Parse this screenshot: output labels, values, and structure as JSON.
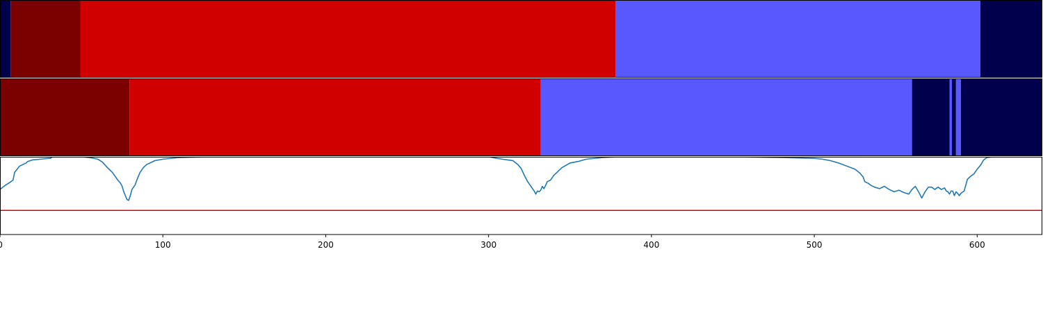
{
  "chart_data": {
    "type": "segmentation-timeline",
    "x_axis": {
      "lim": [
        0,
        640
      ],
      "ticks": [
        0,
        100,
        200,
        300,
        400,
        500,
        600
      ],
      "tick_labels": [
        "0",
        "100",
        "200",
        "300",
        "400",
        "500",
        "600"
      ]
    },
    "palette": {
      "class_0": "#7b0000",
      "class_1": "#d00000",
      "class_2": "#5858ff",
      "class_3": "#00004c"
    },
    "segment_rows": [
      {
        "segments": [
          {
            "start": 0,
            "end": 6.5,
            "class": "class_3"
          },
          {
            "start": 6.5,
            "end": 49.5,
            "class": "class_0"
          },
          {
            "start": 49.5,
            "end": 378,
            "class": "class_1"
          },
          {
            "start": 378,
            "end": 602,
            "class": "class_2"
          },
          {
            "start": 602,
            "end": 640,
            "class": "class_3"
          }
        ]
      },
      {
        "segments": [
          {
            "start": 0,
            "end": 79.5,
            "class": "class_0"
          },
          {
            "start": 79.5,
            "end": 332,
            "class": "class_1"
          },
          {
            "start": 332,
            "end": 560,
            "class": "class_2"
          },
          {
            "start": 560,
            "end": 583,
            "class": "class_3"
          },
          {
            "start": 583,
            "end": 584.5,
            "class": "class_2"
          },
          {
            "start": 584.5,
            "end": 587,
            "class": "class_3"
          },
          {
            "start": 587,
            "end": 590,
            "class": "class_2"
          },
          {
            "start": 590,
            "end": 640,
            "class": "class_3"
          }
        ]
      }
    ],
    "confidence_plot": {
      "ylim": [
        0,
        1
      ],
      "threshold": 0.31,
      "line_color": "#1f77b4",
      "threshold_color": "#e00000",
      "x": [
        0,
        3,
        6,
        8,
        9,
        12,
        16,
        17,
        20,
        25,
        30,
        31,
        32,
        40,
        50,
        55,
        60,
        63,
        66,
        69,
        72,
        74,
        75,
        76,
        77,
        78,
        79,
        80,
        81,
        82,
        83,
        84,
        86,
        88,
        90,
        95,
        100,
        110,
        130,
        200,
        300,
        305,
        315,
        318,
        320,
        322,
        324,
        326,
        328,
        329,
        330,
        331,
        332,
        333,
        334,
        335,
        336,
        338,
        340,
        342,
        345,
        350,
        355,
        360,
        370,
        380,
        450,
        480,
        500,
        505,
        510,
        515,
        520,
        525,
        528,
        530,
        531,
        533,
        535,
        537,
        540,
        543,
        546,
        549,
        552,
        555,
        558,
        560,
        562,
        564,
        566,
        568,
        570,
        572,
        574,
        576,
        578,
        580,
        581,
        582,
        583,
        584,
        585,
        586,
        587,
        588,
        589,
        590,
        592,
        594,
        596,
        598,
        600,
        602,
        604,
        606,
        610,
        620,
        640
      ],
      "y": [
        0.58,
        0.63,
        0.67,
        0.7,
        0.8,
        0.88,
        0.92,
        0.94,
        0.96,
        0.97,
        0.98,
        0.98,
        1.0,
        1.0,
        1.0,
        0.99,
        0.97,
        0.93,
        0.86,
        0.8,
        0.71,
        0.66,
        0.62,
        0.55,
        0.5,
        0.45,
        0.44,
        0.5,
        0.58,
        0.61,
        0.64,
        0.7,
        0.8,
        0.86,
        0.9,
        0.95,
        0.97,
        0.99,
        1.0,
        1.0,
        1.0,
        0.98,
        0.95,
        0.9,
        0.85,
        0.76,
        0.68,
        0.62,
        0.56,
        0.52,
        0.56,
        0.55,
        0.57,
        0.62,
        0.59,
        0.63,
        0.68,
        0.7,
        0.76,
        0.8,
        0.86,
        0.92,
        0.94,
        0.97,
        0.99,
        1.0,
        1.0,
        0.99,
        0.98,
        0.97,
        0.95,
        0.92,
        0.88,
        0.84,
        0.79,
        0.74,
        0.68,
        0.66,
        0.63,
        0.61,
        0.59,
        0.62,
        0.58,
        0.55,
        0.57,
        0.54,
        0.52,
        0.58,
        0.62,
        0.55,
        0.47,
        0.55,
        0.61,
        0.61,
        0.58,
        0.61,
        0.58,
        0.6,
        0.56,
        0.55,
        0.52,
        0.56,
        0.56,
        0.5,
        0.55,
        0.53,
        0.5,
        0.53,
        0.56,
        0.71,
        0.75,
        0.78,
        0.84,
        0.89,
        0.96,
        0.99,
        1.0,
        1.0,
        1.0
      ]
    }
  }
}
